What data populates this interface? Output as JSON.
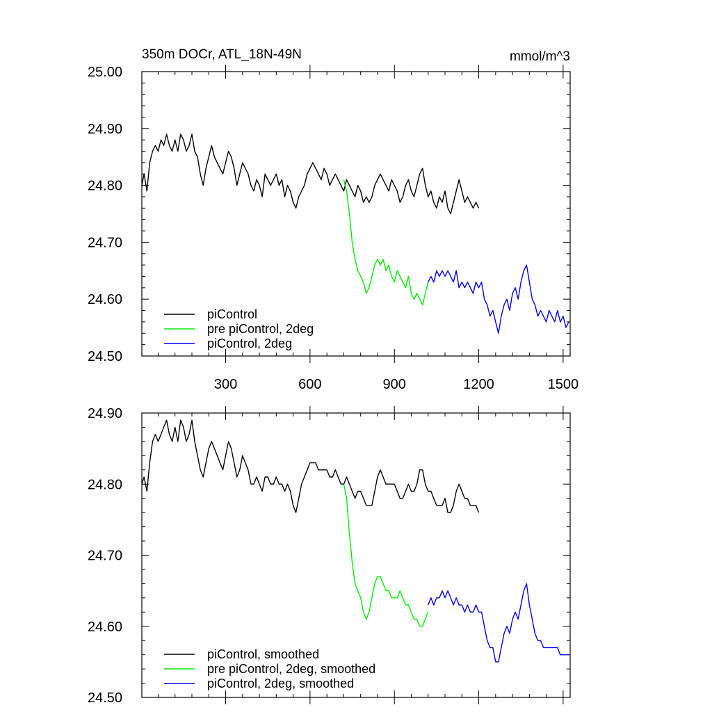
{
  "chart_data": [
    {
      "type": "line",
      "title": "350m DOCr, ATL_18N-49N",
      "units": "mmol/m^3",
      "xlim": [
        2,
        1525
      ],
      "ylim": [
        24.5,
        25.0
      ],
      "x_ticks": [
        300,
        600,
        900,
        1200,
        1500
      ],
      "x_tick_labels": [
        "300",
        "600",
        "900",
        "1200",
        "1500"
      ],
      "y_ticks": [
        24.5,
        24.6,
        24.7,
        24.8,
        24.9,
        25.0
      ],
      "y_tick_labels": [
        "24.50",
        "24.60",
        "24.70",
        "24.80",
        "24.90",
        "25.00"
      ],
      "legend_position": "bottom-left",
      "series": [
        {
          "name": "piControl",
          "color": "#000000",
          "x": [
            2,
            10,
            20,
            30,
            40,
            50,
            60,
            70,
            80,
            90,
            100,
            110,
            120,
            130,
            140,
            150,
            160,
            170,
            180,
            190,
            200,
            210,
            220,
            230,
            240,
            250,
            260,
            270,
            280,
            290,
            300,
            310,
            320,
            330,
            340,
            350,
            360,
            370,
            380,
            390,
            400,
            410,
            420,
            430,
            440,
            450,
            460,
            470,
            480,
            490,
            500,
            510,
            520,
            530,
            540,
            550,
            560,
            570,
            580,
            590,
            600,
            610,
            620,
            630,
            640,
            650,
            660,
            670,
            680,
            690,
            700,
            710,
            720,
            730,
            740,
            750,
            760,
            770,
            780,
            790,
            800,
            810,
            820,
            830,
            840,
            850,
            860,
            870,
            880,
            890,
            900,
            910,
            920,
            930,
            940,
            950,
            960,
            970,
            980,
            990,
            1000,
            1010,
            1020,
            1030,
            1040,
            1050,
            1060,
            1070,
            1080,
            1090,
            1100,
            1110,
            1120,
            1130,
            1140,
            1150,
            1160,
            1170,
            1180,
            1190,
            1200
          ],
          "y": [
            24.8,
            24.82,
            24.79,
            24.84,
            24.86,
            24.87,
            24.86,
            24.88,
            24.87,
            24.89,
            24.87,
            24.86,
            24.88,
            24.86,
            24.89,
            24.88,
            24.86,
            24.87,
            24.89,
            24.86,
            24.85,
            24.82,
            24.8,
            24.83,
            24.85,
            24.87,
            24.85,
            24.84,
            24.83,
            24.82,
            24.84,
            24.86,
            24.85,
            24.83,
            24.8,
            24.82,
            24.84,
            24.83,
            24.82,
            24.8,
            24.79,
            24.81,
            24.8,
            24.78,
            24.82,
            24.81,
            24.8,
            24.81,
            24.82,
            24.8,
            24.81,
            24.78,
            24.8,
            24.79,
            24.77,
            24.76,
            24.78,
            24.79,
            24.8,
            24.82,
            24.83,
            24.84,
            24.83,
            24.82,
            24.81,
            24.83,
            24.82,
            24.8,
            24.81,
            24.82,
            24.81,
            24.8,
            24.79,
            24.81,
            24.8,
            24.79,
            24.78,
            24.8,
            24.79,
            24.77,
            24.78,
            24.77,
            24.78,
            24.8,
            24.81,
            24.82,
            24.81,
            24.8,
            24.79,
            24.81,
            24.8,
            24.79,
            24.77,
            24.78,
            24.8,
            24.81,
            24.79,
            24.78,
            24.8,
            24.82,
            24.83,
            24.8,
            24.78,
            24.79,
            24.77,
            24.76,
            24.78,
            24.77,
            24.79,
            24.76,
            24.75,
            24.77,
            24.79,
            24.81,
            24.79,
            24.77,
            24.78,
            24.77,
            24.76,
            24.77,
            24.76
          ]
        },
        {
          "name": "pre piControl, 2deg",
          "color": "#00ee00",
          "x": [
            720,
            730,
            740,
            750,
            760,
            770,
            780,
            790,
            800,
            810,
            820,
            830,
            840,
            850,
            860,
            870,
            880,
            890,
            900,
            910,
            920,
            930,
            940,
            950,
            960,
            970,
            980,
            990,
            1000,
            1010,
            1020
          ],
          "y": [
            24.81,
            24.79,
            24.75,
            24.7,
            24.67,
            24.65,
            24.64,
            24.63,
            24.61,
            24.62,
            24.64,
            24.66,
            24.67,
            24.66,
            24.67,
            24.65,
            24.66,
            24.64,
            24.63,
            24.65,
            24.64,
            24.63,
            24.62,
            24.64,
            24.61,
            24.6,
            24.61,
            24.6,
            24.59,
            24.61,
            24.63
          ]
        },
        {
          "name": "piControl, 2deg",
          "color": "#0000ee",
          "x": [
            1020,
            1030,
            1040,
            1050,
            1060,
            1070,
            1080,
            1090,
            1100,
            1110,
            1120,
            1130,
            1140,
            1150,
            1160,
            1170,
            1180,
            1190,
            1200,
            1210,
            1220,
            1230,
            1240,
            1250,
            1260,
            1270,
            1280,
            1290,
            1300,
            1310,
            1320,
            1330,
            1340,
            1350,
            1360,
            1370,
            1380,
            1390,
            1400,
            1410,
            1420,
            1430,
            1440,
            1450,
            1460,
            1470,
            1480,
            1490,
            1500,
            1510,
            1520
          ],
          "y": [
            24.63,
            24.64,
            24.63,
            24.65,
            24.64,
            24.65,
            24.64,
            24.65,
            24.64,
            24.63,
            24.65,
            24.62,
            24.63,
            24.62,
            24.63,
            24.62,
            24.61,
            24.63,
            24.62,
            24.63,
            24.6,
            24.59,
            24.57,
            24.58,
            24.56,
            24.54,
            24.57,
            24.59,
            24.6,
            24.58,
            24.61,
            24.62,
            24.6,
            24.63,
            24.65,
            24.66,
            24.63,
            24.6,
            24.59,
            24.57,
            24.58,
            24.57,
            24.56,
            24.58,
            24.57,
            24.56,
            24.58,
            24.56,
            24.57,
            24.55,
            24.56
          ]
        }
      ]
    },
    {
      "type": "line",
      "xlim": [
        2,
        1525
      ],
      "ylim": [
        24.5,
        24.9
      ],
      "x_ticks": [
        300,
        600,
        900,
        1200,
        1500
      ],
      "y_ticks": [
        24.5,
        24.6,
        24.7,
        24.8,
        24.9
      ],
      "y_tick_labels": [
        "24.50",
        "24.60",
        "24.70",
        "24.80",
        "24.90"
      ],
      "legend_position": "bottom-left",
      "series": [
        {
          "name": "piControl, smoothed",
          "color": "#000000",
          "x": [
            2,
            10,
            20,
            30,
            40,
            50,
            60,
            70,
            80,
            90,
            100,
            110,
            120,
            130,
            140,
            150,
            160,
            170,
            180,
            190,
            200,
            210,
            220,
            230,
            240,
            250,
            260,
            270,
            280,
            290,
            300,
            310,
            320,
            330,
            340,
            350,
            360,
            370,
            380,
            390,
            400,
            410,
            420,
            430,
            440,
            450,
            460,
            470,
            480,
            490,
            500,
            510,
            520,
            530,
            540,
            550,
            560,
            570,
            580,
            590,
            600,
            610,
            620,
            630,
            640,
            650,
            660,
            670,
            680,
            690,
            700,
            710,
            720,
            730,
            740,
            750,
            760,
            770,
            780,
            790,
            800,
            810,
            820,
            830,
            840,
            850,
            860,
            870,
            880,
            890,
            900,
            910,
            920,
            930,
            940,
            950,
            960,
            970,
            980,
            990,
            1000,
            1010,
            1020,
            1030,
            1040,
            1050,
            1060,
            1070,
            1080,
            1090,
            1100,
            1110,
            1120,
            1130,
            1140,
            1150,
            1160,
            1170,
            1180,
            1190,
            1200
          ],
          "y": [
            24.8,
            24.81,
            24.79,
            24.83,
            24.86,
            24.87,
            24.86,
            24.87,
            24.88,
            24.89,
            24.87,
            24.86,
            24.88,
            24.86,
            24.89,
            24.88,
            24.86,
            24.87,
            24.89,
            24.86,
            24.84,
            24.82,
            24.81,
            24.83,
            24.85,
            24.86,
            24.85,
            24.84,
            24.83,
            24.82,
            24.84,
            24.86,
            24.85,
            24.83,
            24.81,
            24.82,
            24.84,
            24.83,
            24.82,
            24.8,
            24.8,
            24.81,
            24.8,
            24.79,
            24.81,
            24.81,
            24.8,
            24.8,
            24.81,
            24.8,
            24.8,
            24.79,
            24.8,
            24.79,
            24.77,
            24.76,
            24.78,
            24.8,
            24.81,
            24.82,
            24.83,
            24.83,
            24.83,
            24.82,
            24.82,
            24.82,
            24.82,
            24.81,
            24.81,
            24.82,
            24.81,
            24.8,
            24.8,
            24.81,
            24.8,
            24.79,
            24.78,
            24.79,
            24.79,
            24.78,
            24.77,
            24.77,
            24.77,
            24.79,
            24.81,
            24.82,
            24.81,
            24.8,
            24.8,
            24.8,
            24.8,
            24.79,
            24.78,
            24.78,
            24.79,
            24.8,
            24.79,
            24.79,
            24.8,
            24.82,
            24.82,
            24.8,
            24.79,
            24.79,
            24.78,
            24.77,
            24.77,
            24.77,
            24.78,
            24.76,
            24.76,
            24.77,
            24.79,
            24.8,
            24.79,
            24.78,
            24.78,
            24.77,
            24.77,
            24.77,
            24.76
          ]
        },
        {
          "name": "pre piControl, 2deg, smoothed",
          "color": "#00ee00",
          "x": [
            720,
            730,
            740,
            750,
            760,
            770,
            780,
            790,
            800,
            810,
            820,
            830,
            840,
            850,
            860,
            870,
            880,
            890,
            900,
            910,
            920,
            930,
            940,
            950,
            960,
            970,
            980,
            990,
            1000,
            1010,
            1020
          ],
          "y": [
            24.8,
            24.78,
            24.73,
            24.69,
            24.66,
            24.65,
            24.64,
            24.62,
            24.61,
            24.62,
            24.64,
            24.66,
            24.67,
            24.67,
            24.66,
            24.65,
            24.65,
            24.64,
            24.64,
            24.64,
            24.65,
            24.64,
            24.63,
            24.63,
            24.62,
            24.61,
            24.61,
            24.6,
            24.6,
            24.61,
            24.62
          ]
        },
        {
          "name": "piControl, 2deg, smoothed",
          "color": "#0000ee",
          "x": [
            1020,
            1030,
            1040,
            1050,
            1060,
            1070,
            1080,
            1090,
            1100,
            1110,
            1120,
            1130,
            1140,
            1150,
            1160,
            1170,
            1180,
            1190,
            1200,
            1210,
            1220,
            1230,
            1240,
            1250,
            1260,
            1270,
            1280,
            1290,
            1300,
            1310,
            1320,
            1330,
            1340,
            1350,
            1360,
            1370,
            1380,
            1390,
            1400,
            1410,
            1420,
            1430,
            1440,
            1450,
            1460,
            1470,
            1480,
            1490,
            1500,
            1510,
            1520
          ],
          "y": [
            24.63,
            24.64,
            24.63,
            24.64,
            24.64,
            24.65,
            24.64,
            24.65,
            24.64,
            24.63,
            24.64,
            24.63,
            24.63,
            24.62,
            24.63,
            24.62,
            24.62,
            24.63,
            24.62,
            24.62,
            24.6,
            24.58,
            24.57,
            24.57,
            24.55,
            24.55,
            24.57,
            24.59,
            24.6,
            24.59,
            24.61,
            24.62,
            24.61,
            24.63,
            24.65,
            24.66,
            24.63,
            24.61,
            24.59,
            24.58,
            24.58,
            24.57,
            24.57,
            24.57,
            24.57,
            24.57,
            24.57,
            24.56,
            24.56,
            24.56,
            24.56
          ]
        }
      ]
    }
  ]
}
